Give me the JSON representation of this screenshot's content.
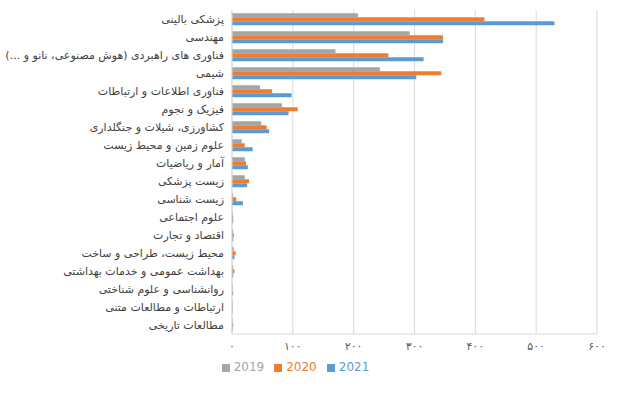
{
  "chart_data": {
    "type": "bar",
    "orientation": "horizontal",
    "grid": true,
    "legend": "bottom",
    "categories": [
      "پزشکی بالینی",
      "مهندسی",
      "فناوری های راهبردی (هوش مصنوعی، نانو و ...)",
      "شیمی",
      "فناوری اطلاعات و ارتباطات",
      "فیزیک و نجوم",
      "کشاورزی، شیلات و جنگلداری",
      "علوم زمین و محیط زیست",
      "آمار و ریاضیات",
      "زیست پزشکی",
      "زیست شناسی",
      "علوم اجتماعی",
      "اقتصاد و تجارت",
      "محیط زیست، طراحی و ساخت",
      "بهداشت عمومی و خدمات بهداشتی",
      "روانشناسی و علوم شناختی",
      "ارتباطات و مطالعات متنی",
      "مطالعات تاریخی"
    ],
    "series": [
      {
        "name": "2019",
        "color": "#a5a5a5",
        "values": [
          207,
          292,
          170,
          243,
          46,
          82,
          48,
          16,
          21,
          21,
          2,
          1,
          2,
          3,
          2,
          1,
          1,
          1
        ]
      },
      {
        "name": "2020",
        "color": "#ed7d31",
        "values": [
          415,
          347,
          257,
          344,
          66,
          108,
          57,
          21,
          23,
          28,
          7,
          2,
          3,
          6,
          4,
          1,
          1,
          2
        ]
      },
      {
        "name": "2021",
        "color": "#5b9bd5",
        "values": [
          530,
          347,
          315,
          303,
          98,
          93,
          61,
          34,
          26,
          25,
          18,
          2,
          2,
          4,
          2,
          2,
          1,
          1
        ]
      }
    ],
    "xlim": [
      0,
      600
    ],
    "xticks": [
      {
        "value": 0,
        "label": "۰"
      },
      {
        "value": 100,
        "label": "۱۰۰"
      },
      {
        "value": 200,
        "label": "۲۰۰"
      },
      {
        "value": 300,
        "label": "۳۰۰"
      },
      {
        "value": 400,
        "label": "۴۰۰"
      },
      {
        "value": 500,
        "label": "۵۰۰"
      },
      {
        "value": 600,
        "label": "۶۰۰"
      }
    ]
  }
}
